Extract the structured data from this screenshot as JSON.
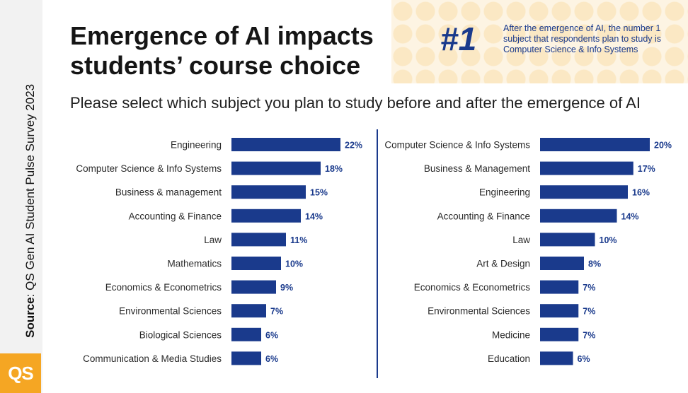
{
  "header": {
    "title_line1": "Emergence of AI impacts",
    "title_line2": "students’ course choice",
    "subtitle": "Please select which subject you plan to study before and after the emergence of AI"
  },
  "callout": {
    "number": "#1",
    "text": "After the emergence of AI, the number 1 subject that respondents plan to study is Computer Science & Info Systems"
  },
  "source": {
    "label": "Source",
    "text": ": QS Gen AI Student Pulse Survey 2023"
  },
  "logo": {
    "text": "QS"
  },
  "colors": {
    "bar": "#1a3a8c",
    "accent": "#f5a623"
  },
  "chart_data": [
    {
      "type": "bar",
      "orientation": "horizontal",
      "categories": [
        "Engineering",
        "Computer Science & Info Systems",
        "Business & management",
        "Accounting & Finance",
        "Law",
        "Mathematics",
        "Economics & Econometrics",
        "Environmental Sciences",
        "Biological Sciences",
        "Communication & Media Studies"
      ],
      "values": [
        22,
        18,
        15,
        14,
        11,
        10,
        9,
        7,
        6,
        6
      ],
      "value_suffix": "%"
    },
    {
      "type": "bar",
      "orientation": "horizontal",
      "categories": [
        "Computer Science & Info Systems",
        "Business & Management",
        "Engineering",
        "Accounting & Finance",
        "Law",
        "Art & Design",
        "Economics & Econometrics",
        "Environmental Sciences",
        "Medicine",
        "Education"
      ],
      "values": [
        20,
        17,
        16,
        14,
        10,
        8,
        7,
        7,
        7,
        6
      ],
      "value_suffix": "%"
    }
  ]
}
